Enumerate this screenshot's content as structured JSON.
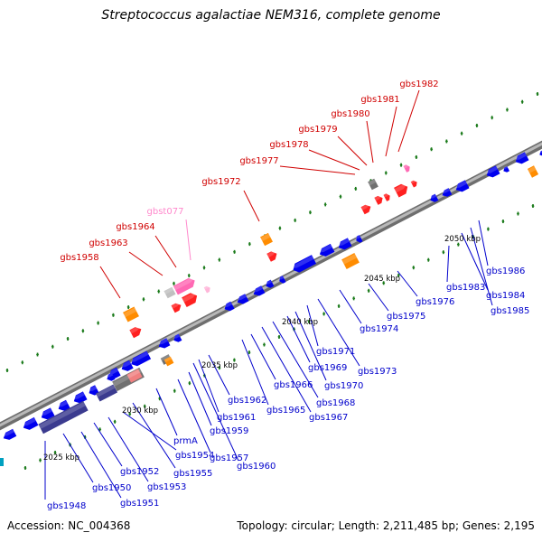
{
  "title": "Streptococcus agalactiae NEM316, complete genome",
  "footer": {
    "accession": "Accession: NC_004368",
    "summary": "Topology: circular; Length: 2,211,485 bp; Genes: 2,195"
  },
  "colors": {
    "backbone": "#909090",
    "cds": "#0000ee",
    "rna": "#ff2020",
    "trna": "#ff69b4",
    "misc": "#ff8c00",
    "pseudo": "#707070",
    "domain": "#3b3b8f",
    "tick": "#1a7a1a",
    "label_top": "#d00000",
    "label_bottom": "#0000cc",
    "label_trna": "#ff88cc"
  },
  "scale_labels": [
    "2025 kbp",
    "2030 kbp",
    "2035 kbp",
    "2040 kbp",
    "2045 kbp",
    "2050 kbp"
  ],
  "top_labels": [
    "gbs1958",
    "gbs1963",
    "gbs1964",
    "gbst077",
    "gbs1972",
    "gbs1977",
    "gbs1978",
    "gbs1979",
    "gbs1980",
    "gbs1981",
    "gbs1982"
  ],
  "bottom_labels": [
    "gbs1948",
    "gbs1950",
    "gbs1951",
    "gbs1952",
    "gbs1953",
    "gbs1954",
    "gbs1955",
    "prmA",
    "gbs1957",
    "gbs1959",
    "gbs1960",
    "gbs1961",
    "gbs1962",
    "gbs1965",
    "gbs1966",
    "gbs1967",
    "gbs1968",
    "gbs1969",
    "gbs1970",
    "gbs1971",
    "gbs1973",
    "gbs1974",
    "gbs1975",
    "gbs1976",
    "gbs1983",
    "gbs1984",
    "gbs1985",
    "gbs1986"
  ]
}
